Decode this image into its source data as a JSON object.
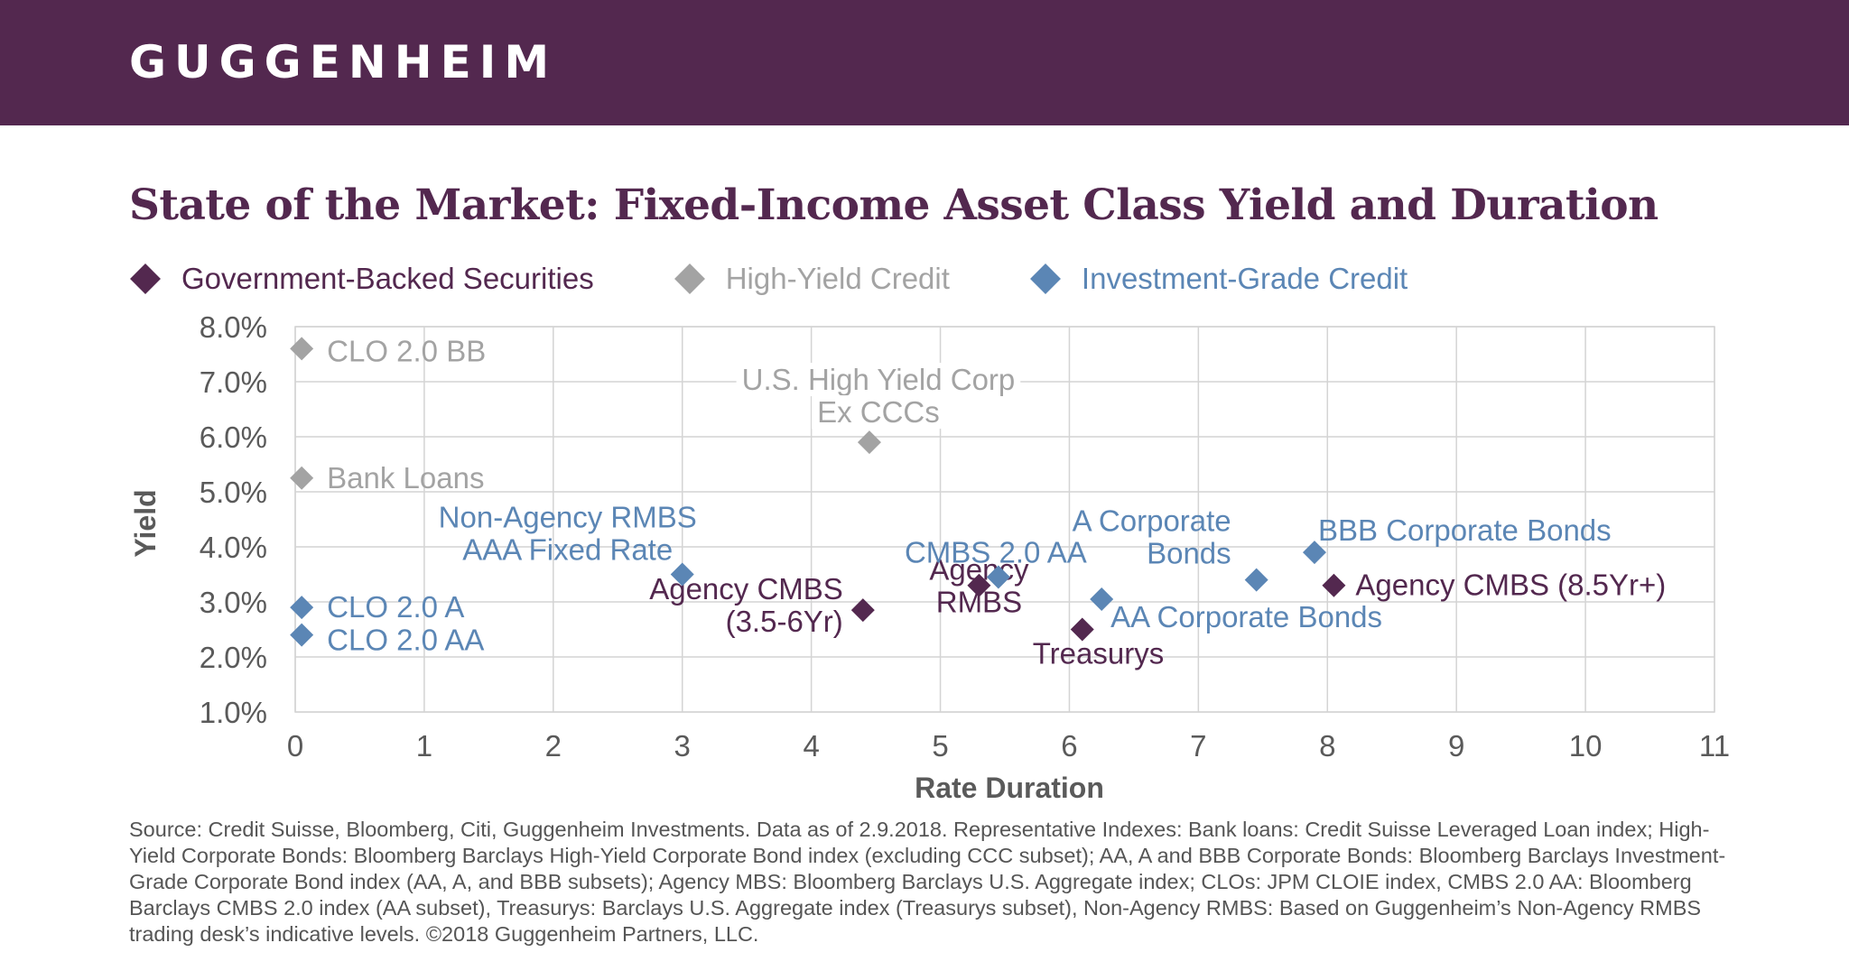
{
  "brand": {
    "logo_text": "GUGGENHEIM"
  },
  "colors": {
    "banner": "#53284f",
    "title": "#53284f",
    "gov": "#53284f",
    "hy": "#a3a3a3",
    "ig": "#5b86b5",
    "grid": "#d4d4d4",
    "axis_text": "#5a5a5a"
  },
  "legend": [
    {
      "label": "Government-Backed Securities",
      "color": "#53284f",
      "icon": "diamond-icon"
    },
    {
      "label": "High-Yield Credit",
      "color": "#a3a3a3",
      "icon": "diamond-icon"
    },
    {
      "label": "Investment-Grade Credit",
      "color": "#5b86b5",
      "icon": "diamond-icon"
    }
  ],
  "chart_data": {
    "type": "scatter",
    "title": "State of the Market: Fixed-Income Asset Class Yield and Duration",
    "xlabel": "Rate Duration",
    "ylabel": "Yield",
    "xlim": [
      0,
      11
    ],
    "ylim": [
      1,
      8
    ],
    "x_ticks": [
      "0",
      "1",
      "2",
      "3",
      "4",
      "5",
      "6",
      "7",
      "8",
      "9",
      "10",
      "11"
    ],
    "y_ticks": [
      "1.0%",
      "2.0%",
      "3.0%",
      "4.0%",
      "5.0%",
      "6.0%",
      "7.0%",
      "8.0%"
    ],
    "grid": true,
    "legend_position": "top-left",
    "series": [
      {
        "name": "Government-Backed Securities",
        "color": "#53284f",
        "points": [
          {
            "label": [
              "Agency CMBS",
              "(3.5-6Yr)"
            ],
            "x": 4.4,
            "y": 2.85
          },
          {
            "label": [
              "Agency",
              "RMBS"
            ],
            "x": 5.3,
            "y": 3.3
          },
          {
            "label": [
              "Treasurys"
            ],
            "x": 6.1,
            "y": 2.5
          },
          {
            "label": [
              "Agency CMBS (8.5Yr+)"
            ],
            "x": 8.05,
            "y": 3.3
          }
        ]
      },
      {
        "name": "High-Yield Credit",
        "color": "#a3a3a3",
        "points": [
          {
            "label": [
              "CLO 2.0 BB"
            ],
            "x": 0.05,
            "y": 7.6
          },
          {
            "label": [
              "Bank Loans"
            ],
            "x": 0.05,
            "y": 5.25
          },
          {
            "label": [
              "U.S. High Yield Corp",
              "Ex CCCs"
            ],
            "x": 4.45,
            "y": 5.9
          }
        ]
      },
      {
        "name": "Investment-Grade Credit",
        "color": "#5b86b5",
        "points": [
          {
            "label": [
              "CLO 2.0 A"
            ],
            "x": 0.05,
            "y": 2.9
          },
          {
            "label": [
              "CLO 2.0 AA"
            ],
            "x": 0.05,
            "y": 2.4
          },
          {
            "label": [
              "Non-Agency RMBS",
              "AAA Fixed Rate"
            ],
            "x": 3.0,
            "y": 3.5
          },
          {
            "label": [
              "CMBS 2.0 AA"
            ],
            "x": 5.45,
            "y": 3.45
          },
          {
            "label": [
              "AA Corporate Bonds"
            ],
            "x": 6.25,
            "y": 3.05
          },
          {
            "label": [
              "A Corporate",
              "Bonds"
            ],
            "x": 7.45,
            "y": 3.4
          },
          {
            "label": [
              "BBB Corporate Bonds"
            ],
            "x": 7.9,
            "y": 3.9
          }
        ]
      }
    ]
  },
  "footnote": "Source: Credit Suisse, Bloomberg, Citi, Guggenheim Investments. Data as of 2.9.2018. Representative Indexes: Bank loans: Credit Suisse Leveraged Loan index; High-Yield Corporate Bonds: Bloomberg Barclays High-Yield Corporate Bond index (excluding CCC subset); AA, A and BBB Corporate Bonds: Bloomberg Barclays Investment-Grade Corporate Bond index (AA, A, and BBB subsets); Agency MBS: Bloomberg Barclays U.S. Aggregate index; CLOs: JPM CLOIE index, CMBS 2.0 AA: Bloomberg Barclays CMBS 2.0 index (AA subset), Treasurys: Barclays U.S. Aggregate index (Treasurys subset), Non-Agency RMBS: Based on Guggenheim’s Non-Agency RMBS trading desk’s indicative levels. ©2018 Guggenheim Partners, LLC."
}
